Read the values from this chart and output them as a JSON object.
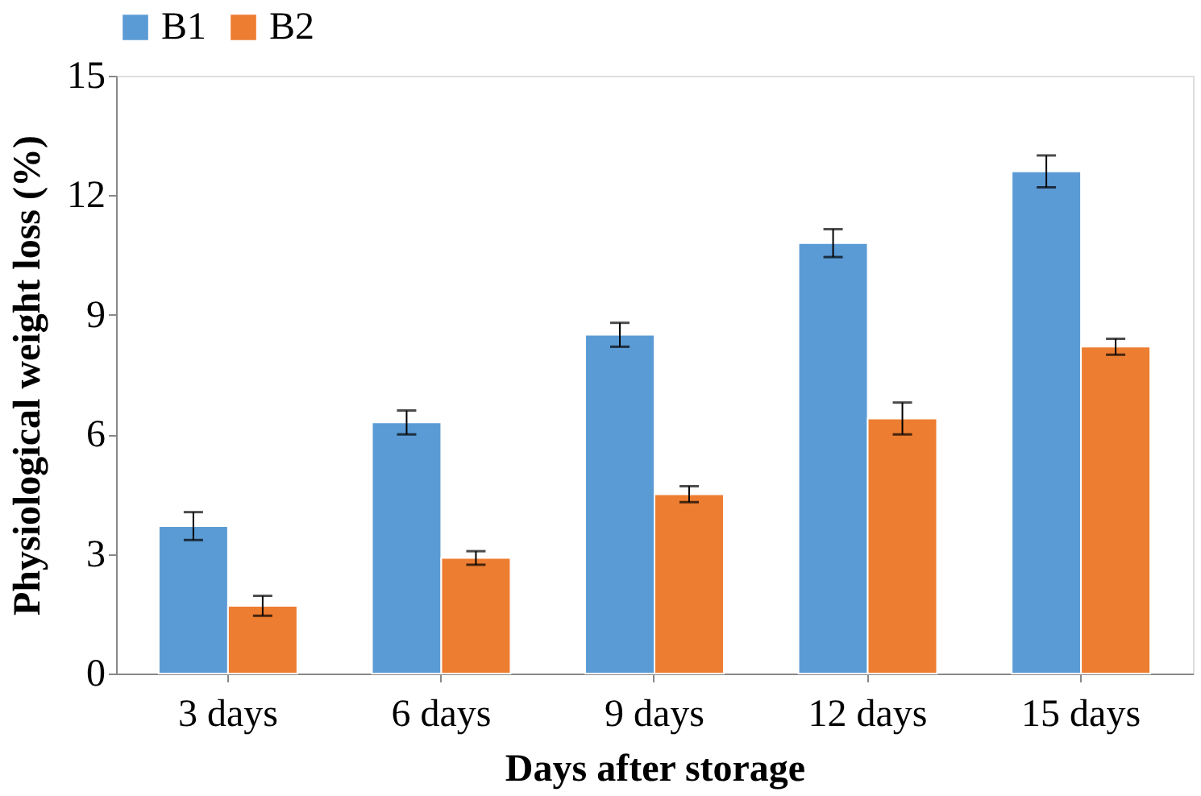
{
  "chart_data": {
    "type": "bar",
    "xlabel": "Days after storage",
    "ylabel": "Physiological weight loss (%)",
    "categories": [
      "3 days",
      "6 days",
      "9 days",
      "12 days",
      "15 days"
    ],
    "series": [
      {
        "name": "B1",
        "color": "#5b9bd5",
        "values": [
          3.7,
          6.3,
          8.5,
          10.8,
          12.6
        ],
        "errors": [
          0.35,
          0.3,
          0.3,
          0.35,
          0.4
        ]
      },
      {
        "name": "B2",
        "color": "#ed7d31",
        "values": [
          1.7,
          2.9,
          4.5,
          6.4,
          8.2
        ],
        "errors": [
          0.25,
          0.17,
          0.2,
          0.4,
          0.2
        ]
      }
    ],
    "ylim": [
      0,
      15
    ],
    "yticks": [
      0,
      3,
      6,
      9,
      12,
      15
    ],
    "grid": false,
    "legend": "top"
  }
}
